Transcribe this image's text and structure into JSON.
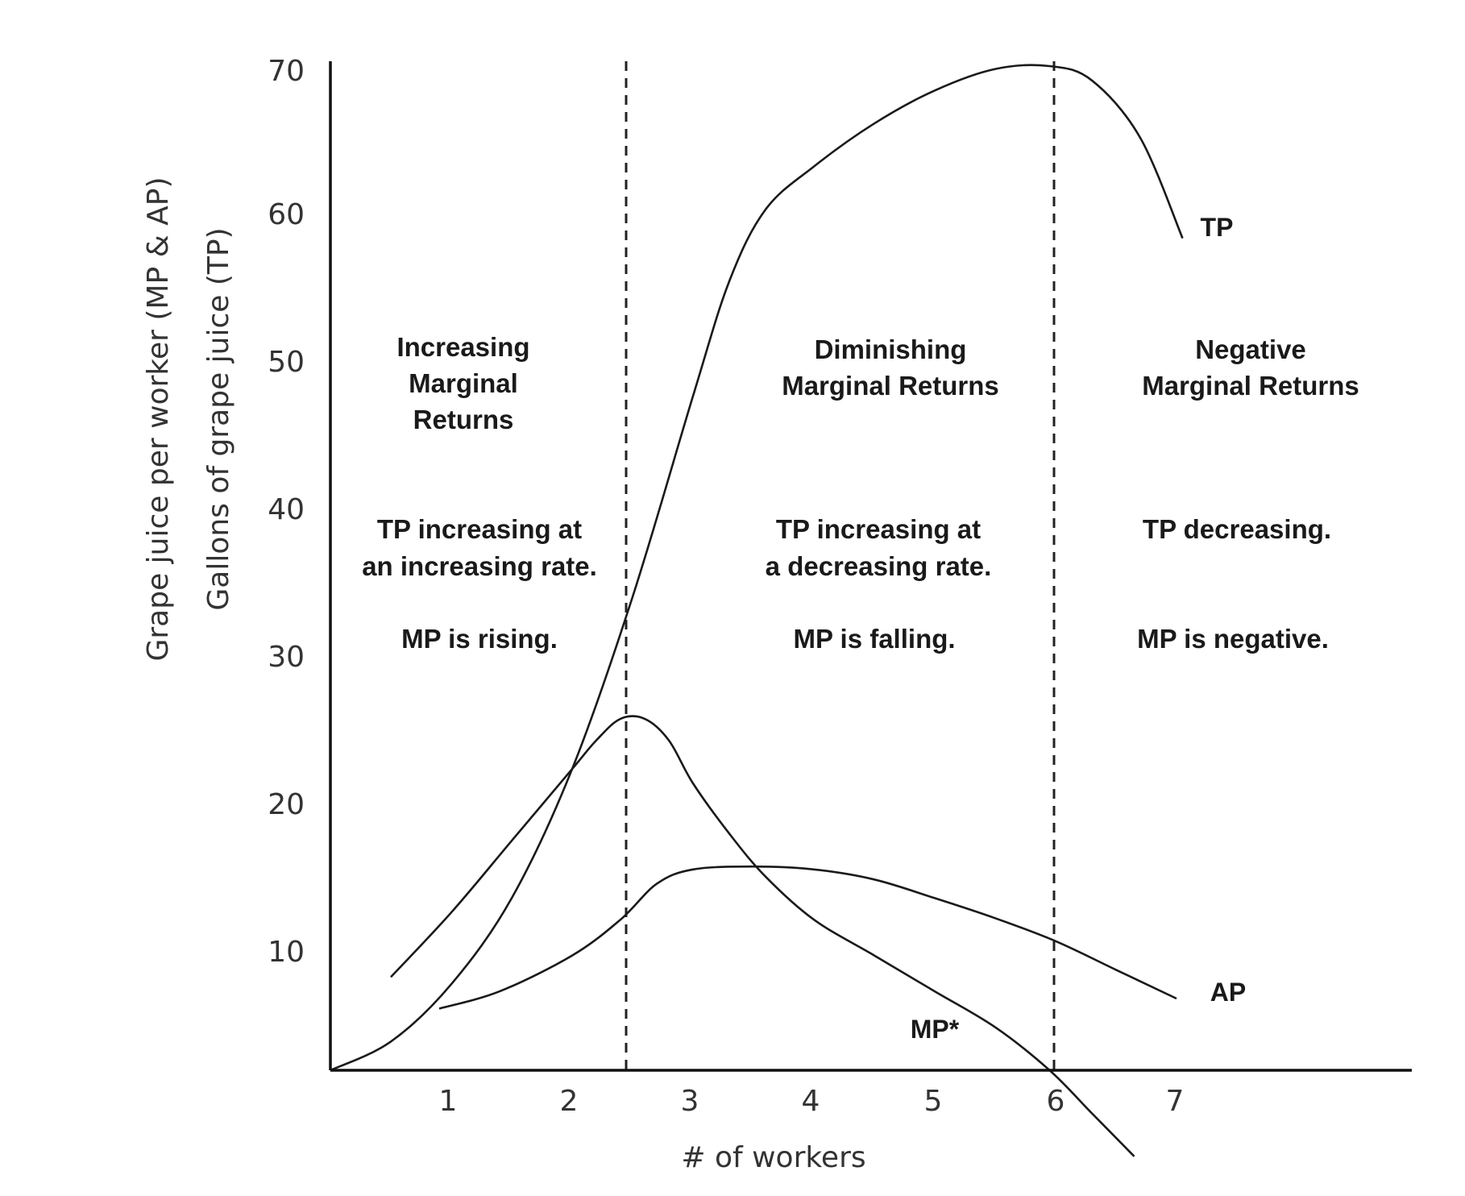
{
  "chart_data": {
    "type": "line",
    "xlabel": "# of workers",
    "ylabel_lines": [
      "Grape juice per worker (MP & AP)",
      "Gallons of grape juice (TP)"
    ],
    "xticks": [
      "1",
      "2",
      "3",
      "4",
      "5",
      "6",
      "7"
    ],
    "yticks": [
      "10",
      "20",
      "30",
      "40",
      "50",
      "60",
      "70"
    ],
    "xlim": [
      0,
      8.9
    ],
    "ylim": [
      0,
      70
    ],
    "grid": false,
    "dividers_x": [
      2.45,
      5.95
    ],
    "series": [
      {
        "name": "TP",
        "points": [
          [
            0,
            0
          ],
          [
            0.5,
            2
          ],
          [
            1,
            6
          ],
          [
            1.5,
            12
          ],
          [
            2,
            21
          ],
          [
            2.5,
            33
          ],
          [
            3,
            47
          ],
          [
            3.3,
            55
          ],
          [
            3.6,
            60
          ],
          [
            4,
            63
          ],
          [
            4.5,
            66
          ],
          [
            5,
            68.3
          ],
          [
            5.5,
            69.8
          ],
          [
            5.95,
            70
          ],
          [
            6.3,
            69
          ],
          [
            6.7,
            65
          ],
          [
            7.05,
            58
          ]
        ]
      },
      {
        "name": "MP*",
        "points": [
          [
            0.5,
            6.5
          ],
          [
            1,
            11
          ],
          [
            1.5,
            16
          ],
          [
            2,
            21
          ],
          [
            2.2,
            23
          ],
          [
            2.4,
            24.5
          ],
          [
            2.6,
            24.5
          ],
          [
            2.8,
            23
          ],
          [
            3,
            20
          ],
          [
            3.3,
            16.5
          ],
          [
            3.6,
            13.5
          ],
          [
            4,
            10.5
          ],
          [
            4.5,
            8
          ],
          [
            5,
            5.5
          ],
          [
            5.5,
            3
          ],
          [
            5.95,
            0
          ],
          [
            6.3,
            -3
          ],
          [
            6.65,
            -6
          ]
        ]
      },
      {
        "name": "AP",
        "points": [
          [
            0.9,
            4.3
          ],
          [
            1.4,
            5.5
          ],
          [
            2,
            8
          ],
          [
            2.4,
            10.5
          ],
          [
            2.7,
            13
          ],
          [
            3,
            14
          ],
          [
            3.5,
            14.2
          ],
          [
            4,
            14
          ],
          [
            4.5,
            13.3
          ],
          [
            5,
            12
          ],
          [
            5.5,
            10.6
          ],
          [
            6,
            9
          ],
          [
            6.5,
            7
          ],
          [
            7,
            5
          ]
        ]
      }
    ]
  },
  "regions": [
    {
      "heading": [
        "Increasing",
        "Marginal",
        "Returns"
      ],
      "tp_text": [
        "TP increasing at",
        "an increasing rate."
      ],
      "mp_text": "MP is rising."
    },
    {
      "heading": [
        "Diminishing",
        "Marginal Returns"
      ],
      "tp_text": [
        "TP increasing at",
        "a decreasing rate."
      ],
      "mp_text": "MP is falling."
    },
    {
      "heading": [
        "Negative",
        "Marginal Returns"
      ],
      "tp_text": [
        "TP decreasing."
      ],
      "mp_text": "MP is negative."
    }
  ],
  "curve_labels": {
    "tp": "TP",
    "ap": "AP",
    "mp": "MP*"
  }
}
